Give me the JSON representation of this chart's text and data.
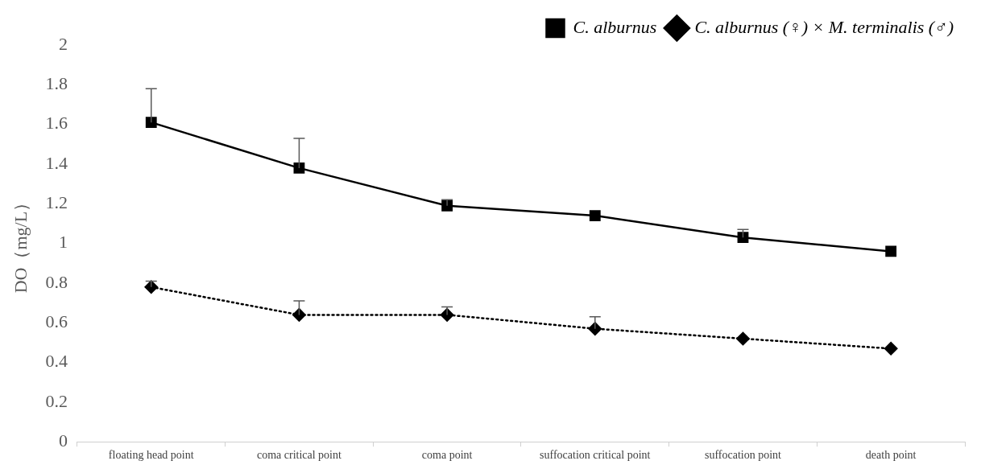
{
  "chart_data": {
    "type": "line",
    "ylabel": "DO（mg/L）",
    "categories": [
      "floating head point",
      "coma critical point",
      "coma point",
      "suffocation critical point",
      "suffocation point",
      "death point"
    ],
    "series": [
      {
        "name": "C. alburnus",
        "color": "#000000",
        "marker": "square",
        "line_style": "solid",
        "values": [
          1.61,
          1.38,
          1.19,
          1.14,
          1.03,
          0.96
        ],
        "errors": [
          [
            1.61,
            1.78
          ],
          [
            1.38,
            1.53
          ],
          [
            1.19,
            1.22
          ],
          null,
          [
            1.03,
            1.07
          ],
          null
        ]
      },
      {
        "name": "C. alburnus (♀) × M. terminalis (♂)",
        "color": "#000000",
        "marker": "diamond",
        "line_style": "dotted",
        "values": [
          0.78,
          0.64,
          0.64,
          0.57,
          0.52,
          0.47
        ],
        "errors": [
          [
            0.78,
            0.81
          ],
          [
            0.64,
            0.71
          ],
          [
            0.64,
            0.68
          ],
          [
            0.57,
            0.63
          ],
          null,
          null
        ]
      }
    ],
    "ylim": [
      0,
      2
    ],
    "yticks": [
      0,
      0.2,
      0.4,
      0.6,
      0.8,
      1,
      1.2,
      1.4,
      1.6,
      1.8,
      2
    ],
    "grid": false,
    "legend": "top right"
  }
}
